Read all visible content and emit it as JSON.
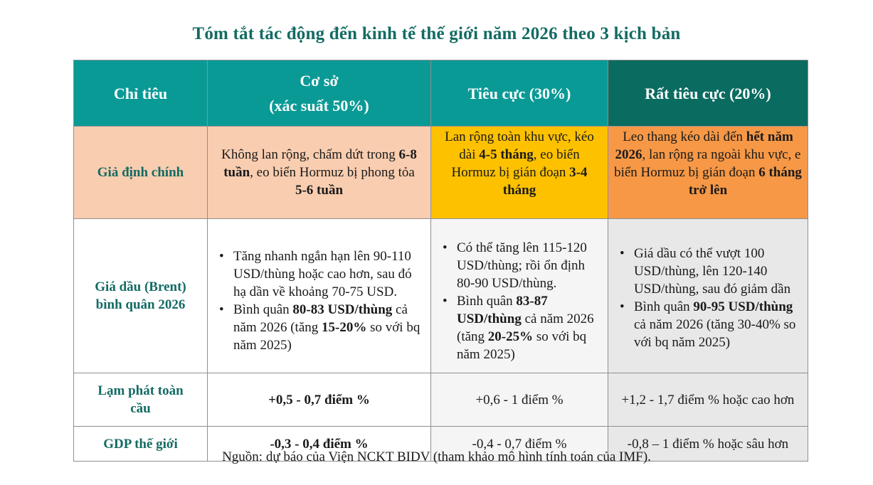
{
  "title": "Tóm tắt tác động đến kinh tế thế giới năm 2026 theo 3 kịch bản",
  "header": {
    "indicator": "Chỉ tiêu",
    "base_line1": "Cơ sở",
    "base_line2": "(xác suất 50%)",
    "negative": "Tiêu cực (30%)",
    "very_negative": "Rất tiêu cực (20%)"
  },
  "rows": {
    "assumption": {
      "label": "Giả định chính",
      "base": {
        "t1": "Không lan rộng, chấm dứt trong ",
        "b1": "6-8 tuần",
        "t2": ", eo biển Hormuz bị phong tỏa ",
        "b2": "5-6 tuần"
      },
      "negative": {
        "t1": "Lan rộng toàn khu vực, kéo dài ",
        "b1": "4-5 tháng",
        "t2": ", eo biển Hormuz bị gián đoạn ",
        "b2": "3-4 tháng"
      },
      "very_negative": {
        "t1": "Leo thang kéo dài đến ",
        "b1": "hết năm 2026",
        "t2": ", lan rộng ra ngoài khu vực, e biển Hormuz bị gián đoạn ",
        "b2": "6 tháng trở lên"
      }
    },
    "oil": {
      "label_line1": "Giá dầu (Brent)",
      "label_line2": "bình quân 2026",
      "base": {
        "bullet1": "Tăng nhanh ngắn hạn lên 90-110 USD/thùng hoặc cao hơn, sau đó hạ dần về khoảng 70-75 USD.",
        "bullet2_t1": "Bình quân ",
        "bullet2_b1": "80-83 USD/thùng",
        "bullet2_t2": " cả năm 2026 (tăng ",
        "bullet2_b2": "15-20%",
        "bullet2_t3": " so với bq năm 2025)"
      },
      "negative": {
        "bullet1": "Có thể tăng lên 115-120 USD/thùng; rồi ổn định 80-90 USD/thùng.",
        "bullet2_t1": "Bình quân ",
        "bullet2_b1": "83-87 USD/thùng",
        "bullet2_t2": " cả năm 2026 (tăng ",
        "bullet2_b2": "20-25%",
        "bullet2_t3": " so với bq năm 2025)"
      },
      "very_negative": {
        "bullet1": "Giá dầu có thể vượt 100 USD/thùng, lên 120-140 USD/thùng, sau đó giảm dần",
        "bullet2_t1": "Bình quân ",
        "bullet2_b1": "90-95 USD/thùng",
        "bullet2_t2": " cả năm 2026 (tăng 30-40% so với bq năm 2025)"
      }
    },
    "inflation": {
      "label": "Lạm phát toàn cầu",
      "base": "+0,5 - 0,7 điểm %",
      "negative": "+0,6 - 1 điểm %",
      "very_negative": "+1,2 - 1,7 điểm % hoặc cao hơn"
    },
    "gdp": {
      "label": "GDP thế giới",
      "base": "-0,3 - 0,4 điểm %",
      "negative": "-0,4 - 0,7 điểm %",
      "very_negative": "-0,8 – 1 điểm % hoặc sâu hơn"
    }
  },
  "source": "Nguồn: dự báo của Viện NCKT BIDV (tham khảo mô hình tính toán của IMF).",
  "colors": {
    "title": "#136b63",
    "header_teal": "#0a9a96",
    "header_dark": "#0a6b60",
    "peach": "#f9cdb0",
    "amber": "#fdc100",
    "orange": "#f69846",
    "grey": "#e8e8e8"
  }
}
